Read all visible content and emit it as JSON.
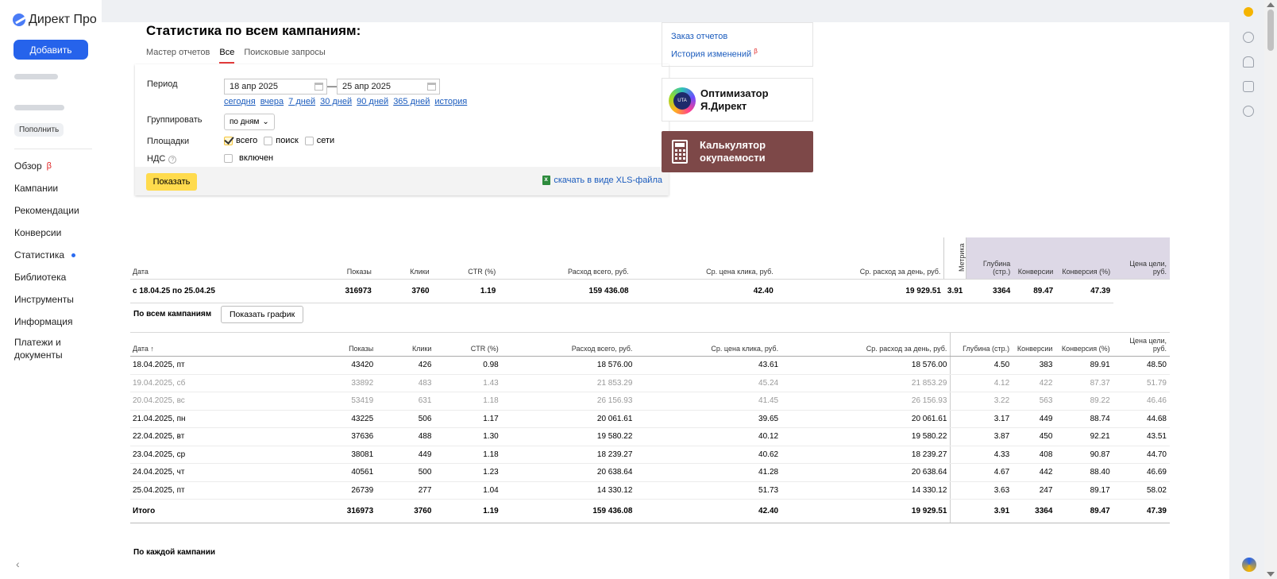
{
  "app": {
    "logo_text": "Директ Про",
    "add_button": "Добавить",
    "topup_button": "Пополнить"
  },
  "nav": {
    "items": [
      {
        "label": "Обзор",
        "badge": "β"
      },
      {
        "label": "Кампании"
      },
      {
        "label": "Рекомендации"
      },
      {
        "label": "Конверсии"
      },
      {
        "label": "Статистика",
        "active": true
      },
      {
        "label": "Библиотека"
      },
      {
        "label": "Инструменты"
      },
      {
        "label": "Информация"
      },
      {
        "label": "Платежи и документы"
      }
    ]
  },
  "page": {
    "title": "Статистика по всем кампаниям:",
    "tabs": [
      {
        "label": "Мастер отчетов"
      },
      {
        "label": "Все",
        "active": true
      },
      {
        "label": "Поисковые запросы"
      }
    ]
  },
  "filters": {
    "period_label": "Период",
    "date_from": "18 апр 2025",
    "date_to": "25 апр 2025",
    "dash": "—",
    "quick_links": [
      "сегодня",
      "вчера",
      "7 дней",
      "30 дней",
      "90 дней",
      "365 дней",
      "история"
    ],
    "group_label": "Группировать",
    "group_value": "по дням",
    "platforms_label": "Площадки",
    "platform_all": "всего",
    "platform_search": "поиск",
    "platform_networks": "сети",
    "vat_label": "НДС",
    "vat_option": "включен",
    "show_button": "Показать",
    "xls_link": "скачать в виде XLS-файла"
  },
  "side": {
    "order_reports": "Заказ отчетов",
    "change_history": "История изменений",
    "beta": "β",
    "promo1_line1": "Оптимизатор",
    "promo1_line2": "Я.Директ",
    "promo1_logo": "UTA",
    "promo2_line1": "Калькулятор",
    "promo2_line2": "окупаемости"
  },
  "summary": {
    "headers": [
      "Дата",
      "Показы",
      "Клики",
      "CTR (%)",
      "Расход всего, руб.",
      "Ср. цена клика, руб.",
      "Ср. расход за день, руб.",
      "Глубина (стр.)",
      "Конверсии",
      "Конверсия (%)",
      "Цена цели, руб."
    ],
    "metrika_label": "Метрика",
    "row": [
      "с 18.04.25 по 25.04.25",
      "316973",
      "3760",
      "1.19",
      "159 436.08",
      "42.40",
      "19 929.51",
      "3.91",
      "3364",
      "89.47",
      "47.39"
    ]
  },
  "daily": {
    "section_title": "По всем кампаниям",
    "chart_button": "Показать график",
    "headers": [
      "Дата ↑",
      "Показы",
      "Клики",
      "CTR (%)",
      "Расход всего, руб.",
      "Ср. цена клика, руб.",
      "Ср. расход за день, руб.",
      "Глубина (стр.)",
      "Конверсии",
      "Конверсия (%)",
      "Цена цели, руб."
    ],
    "rows": [
      [
        "18.04.2025, пт",
        "43420",
        "426",
        "0.98",
        "18 576.00",
        "43.61",
        "18 576.00",
        "4.50",
        "383",
        "89.91",
        "48.50"
      ],
      [
        "19.04.2025, сб",
        "33892",
        "483",
        "1.43",
        "21 853.29",
        "45.24",
        "21 853.29",
        "4.12",
        "422",
        "87.37",
        "51.79"
      ],
      [
        "20.04.2025, вс",
        "53419",
        "631",
        "1.18",
        "26 156.93",
        "41.45",
        "26 156.93",
        "3.22",
        "563",
        "89.22",
        "46.46"
      ],
      [
        "21.04.2025, пн",
        "43225",
        "506",
        "1.17",
        "20 061.61",
        "39.65",
        "20 061.61",
        "3.17",
        "449",
        "88.74",
        "44.68"
      ],
      [
        "22.04.2025, вт",
        "37636",
        "488",
        "1.30",
        "19 580.22",
        "40.12",
        "19 580.22",
        "3.87",
        "450",
        "92.21",
        "43.51"
      ],
      [
        "23.04.2025, ср",
        "38081",
        "449",
        "1.18",
        "18 239.27",
        "40.62",
        "18 239.27",
        "4.33",
        "408",
        "90.87",
        "44.70"
      ],
      [
        "24.04.2025, чт",
        "40561",
        "500",
        "1.23",
        "20 638.64",
        "41.28",
        "20 638.64",
        "4.67",
        "442",
        "88.40",
        "46.69"
      ],
      [
        "25.04.2025, пт",
        "26739",
        "277",
        "1.04",
        "14 330.12",
        "51.73",
        "14 330.12",
        "3.63",
        "247",
        "89.17",
        "58.02"
      ]
    ],
    "total": [
      "Итого",
      "316973",
      "3760",
      "1.19",
      "159 436.08",
      "42.40",
      "19 929.51",
      "3.91",
      "3364",
      "89.47",
      "47.39"
    ]
  },
  "per_campaign": {
    "section_title": "По каждой кампании"
  }
}
